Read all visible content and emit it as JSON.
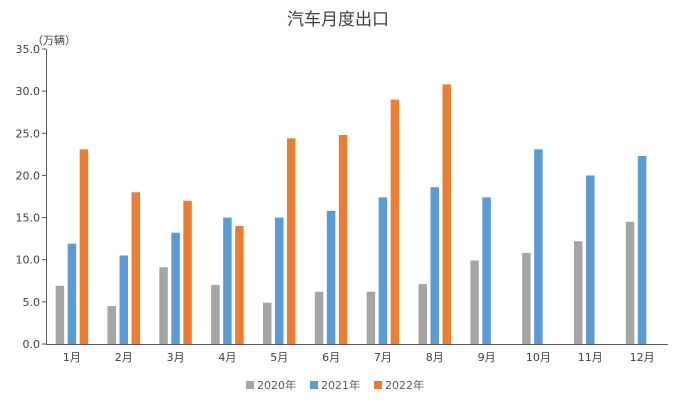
{
  "chart_data": {
    "type": "bar",
    "title": "汽车月度出口",
    "unit_label": "（万辆）",
    "categories": [
      "1月",
      "2月",
      "3月",
      "4月",
      "5月",
      "6月",
      "7月",
      "8月",
      "9月",
      "10月",
      "11月",
      "12月"
    ],
    "series": [
      {
        "name": "2020年",
        "color": "#a5a5a5",
        "values": [
          6.9,
          4.5,
          9.1,
          7.0,
          4.9,
          6.2,
          6.2,
          7.1,
          9.9,
          10.8,
          12.2,
          14.5
        ]
      },
      {
        "name": "2021年",
        "color": "#5b9bd5",
        "values": [
          11.9,
          10.5,
          13.2,
          15.0,
          15.0,
          15.8,
          17.4,
          18.6,
          17.4,
          23.1,
          20.0,
          22.3
        ]
      },
      {
        "name": "2022年",
        "color": "#ed7d31",
        "values": [
          23.1,
          18.0,
          17.0,
          14.0,
          24.4,
          24.8,
          29.0,
          30.8,
          null,
          null,
          null,
          null
        ]
      }
    ],
    "ylim": [
      0,
      35
    ],
    "yticks": [
      "0.0",
      "5.0",
      "10.0",
      "15.0",
      "20.0",
      "25.0",
      "30.0",
      "35.0"
    ],
    "grid": false,
    "legend": "bottom"
  }
}
